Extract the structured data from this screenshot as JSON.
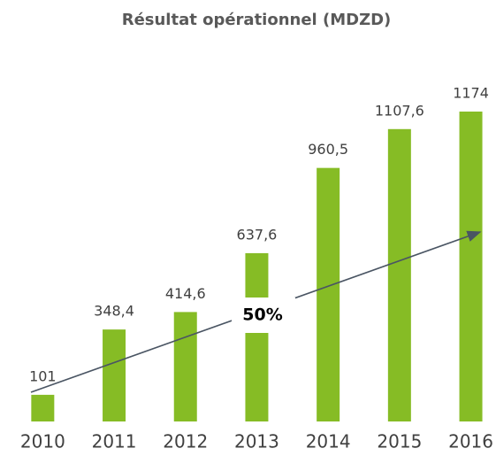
{
  "chart_data": {
    "type": "bar",
    "title": "Résultat opérationnel (MDZD)",
    "categories": [
      "2010",
      "2011",
      "2012",
      "2013",
      "2014",
      "2015",
      "2016"
    ],
    "values": [
      101,
      348.4,
      414.6,
      637.6,
      960.5,
      1107.6,
      1174
    ],
    "value_labels": [
      "101",
      "348,4",
      "414,6",
      "637,6",
      "960,5",
      "1107,6",
      "1174"
    ],
    "color": "#86bc25",
    "annotation": "50%"
  }
}
